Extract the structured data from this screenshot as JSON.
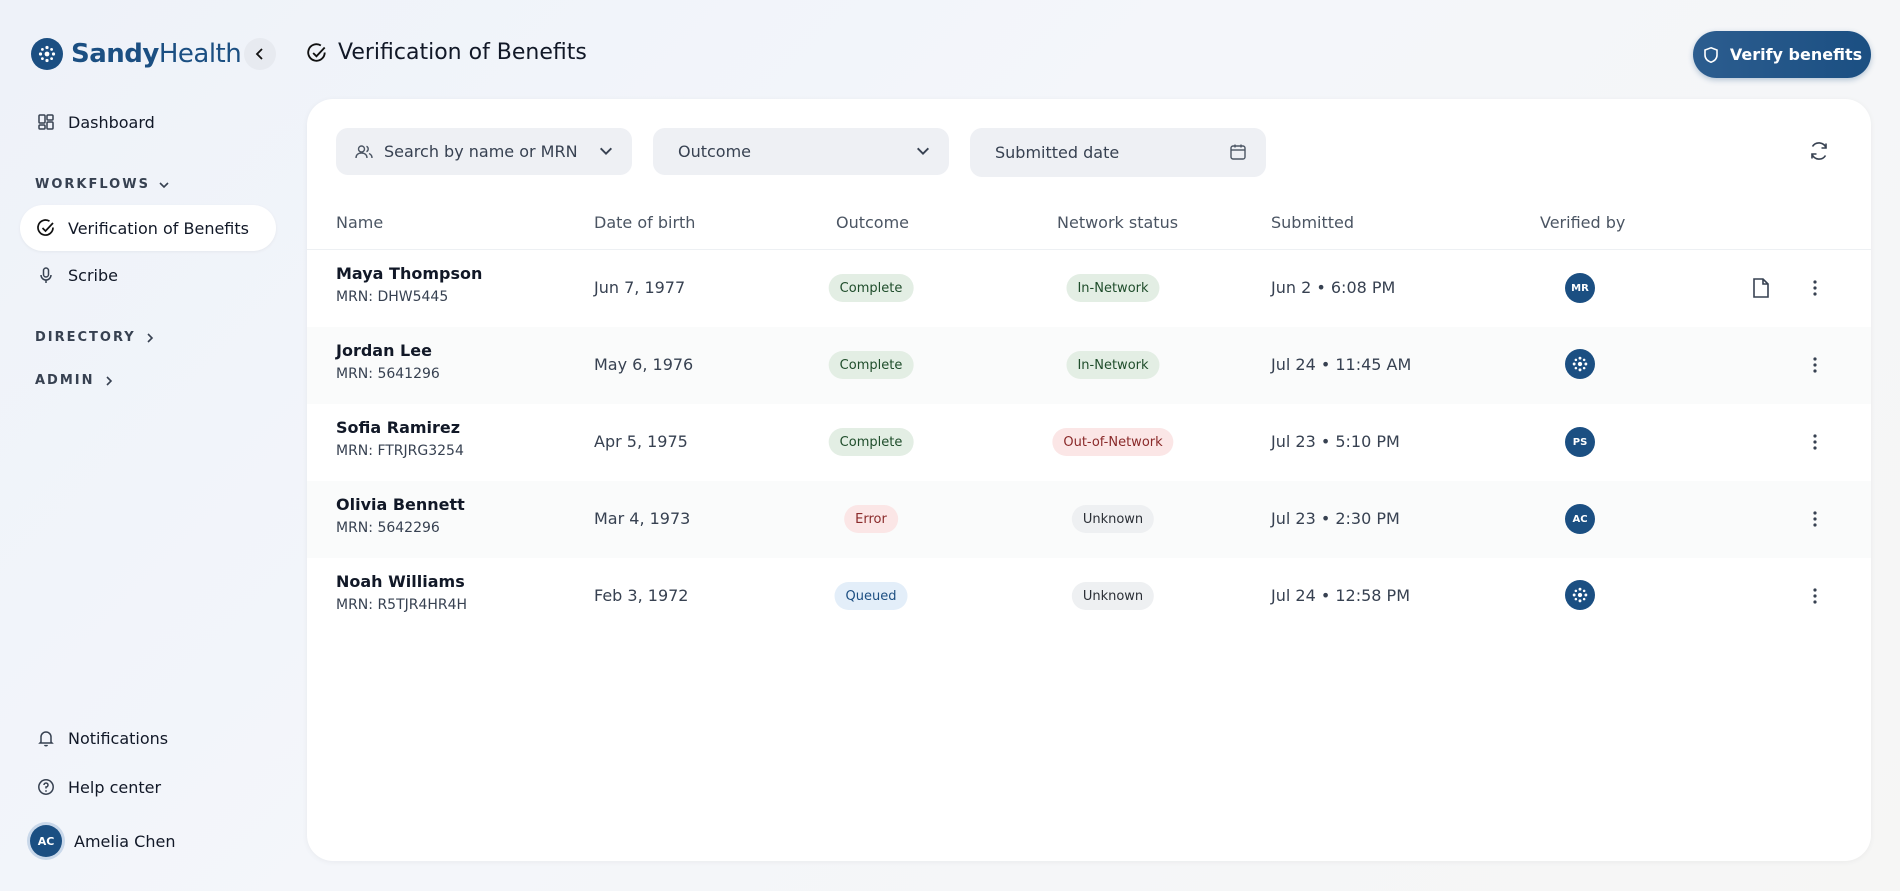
{
  "brand": {
    "name_bold": "Sandy",
    "name_light": "Health"
  },
  "sidebar": {
    "dashboard": "Dashboard",
    "workflows": "WORKFLOWS",
    "vob": "Verification of Benefits",
    "scribe": "Scribe",
    "directory": "DIRECTORY",
    "admin": "ADMIN",
    "notifications": "Notifications",
    "help": "Help center",
    "user": {
      "initials": "AC",
      "name": "Amelia Chen"
    }
  },
  "header": {
    "title": "Verification of Benefits",
    "verify_button": "Verify benefits"
  },
  "filters": {
    "search_placeholder": "Search by name or MRN",
    "outcome": "Outcome",
    "submitted_date": "Submitted date"
  },
  "columns": [
    "Name",
    "Date of birth",
    "Outcome",
    "Network status",
    "Submitted",
    "Verified by"
  ],
  "rows": [
    {
      "name": "Maya Thompson",
      "mrn": "MRN: DHW5445",
      "dob": "Jun 7, 1977",
      "outcome": "Complete",
      "network": "In-Network",
      "submitted": "Jun 2 • 6:08 PM",
      "verified": "MR"
    },
    {
      "name": "Jordan Lee",
      "mrn": "MRN: 5641296",
      "dob": "May 6, 1976",
      "outcome": "Complete",
      "network": "In-Network",
      "submitted": "Jul 24 • 11:45 AM",
      "verified": ""
    },
    {
      "name": "Sofia Ramirez",
      "mrn": "MRN: FTRJRG3254",
      "dob": "Apr 5, 1975",
      "outcome": "Complete",
      "network": "Out-of-Network",
      "submitted": "Jul 23 • 5:10 PM",
      "verified": "PS"
    },
    {
      "name": "Olivia Bennett",
      "mrn": "MRN: 5642296",
      "dob": "Mar 4, 1973",
      "outcome": "Error",
      "network": "Unknown",
      "submitted": "Jul 23 • 2:30 PM",
      "verified": "AC"
    },
    {
      "name": "Noah Williams",
      "mrn": "MRN: R5TJR4HR4H",
      "dob": "Feb 3, 1972",
      "outcome": "Queued",
      "network": "Unknown",
      "submitted": "Jul 24 • 12:58 PM",
      "verified": ""
    }
  ],
  "colors": {
    "brand": "#1b4f82",
    "complete": "#e3eee4",
    "error": "#fbe6e6",
    "queued": "#e3eef9"
  },
  "icons": {
    "logo": "sandy-logo-icon",
    "check": "check-circle-icon",
    "shield": "shield-icon"
  }
}
